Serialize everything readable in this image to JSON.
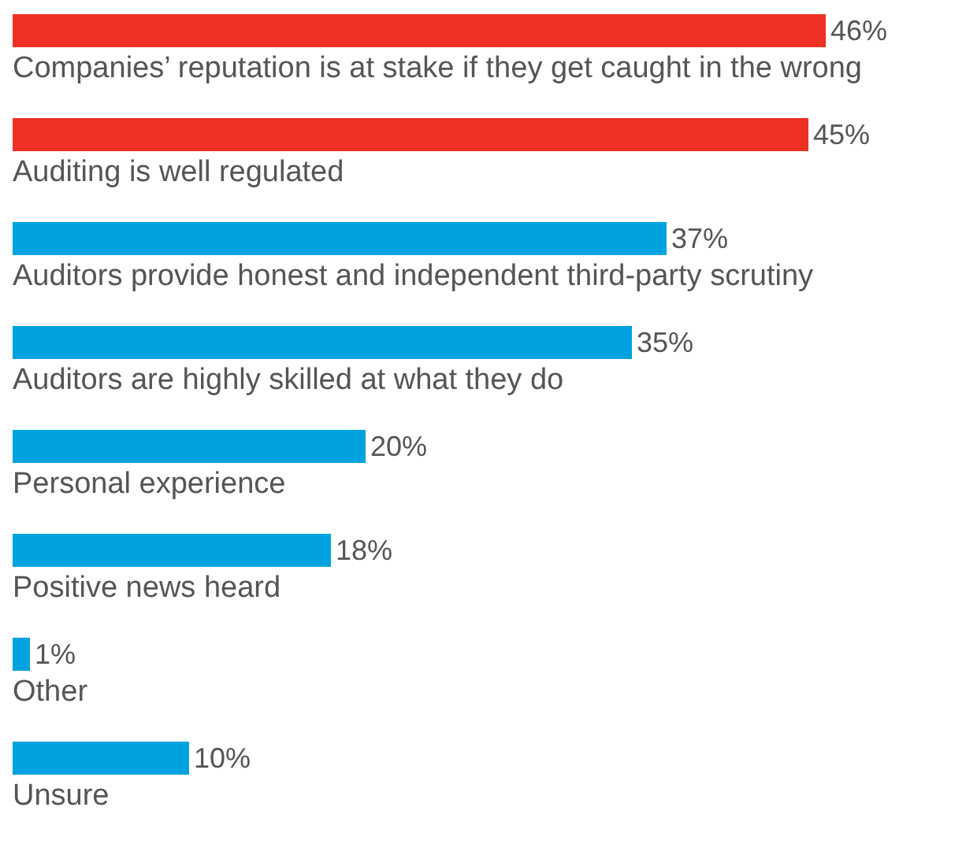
{
  "chart_data": {
    "type": "bar",
    "orientation": "horizontal",
    "categories": [
      "Companies’ reputation is at stake if they get caught in the wrong",
      "Auditing is well regulated",
      "Auditors provide honest and independent third-party scrutiny",
      "Auditors are highly skilled at what they do",
      "Personal experience",
      "Positive news heard",
      "Other",
      "Unsure"
    ],
    "values": [
      46,
      45,
      37,
      35,
      20,
      18,
      1,
      10
    ],
    "colors": [
      "#ee3124",
      "#ee3124",
      "#00a3e0",
      "#00a3e0",
      "#00a3e0",
      "#00a3e0",
      "#00a3e0",
      "#00a3e0"
    ],
    "value_labels": [
      "46%",
      "45%",
      "37%",
      "35%",
      "20%",
      "18%",
      "1%",
      "10%"
    ]
  }
}
